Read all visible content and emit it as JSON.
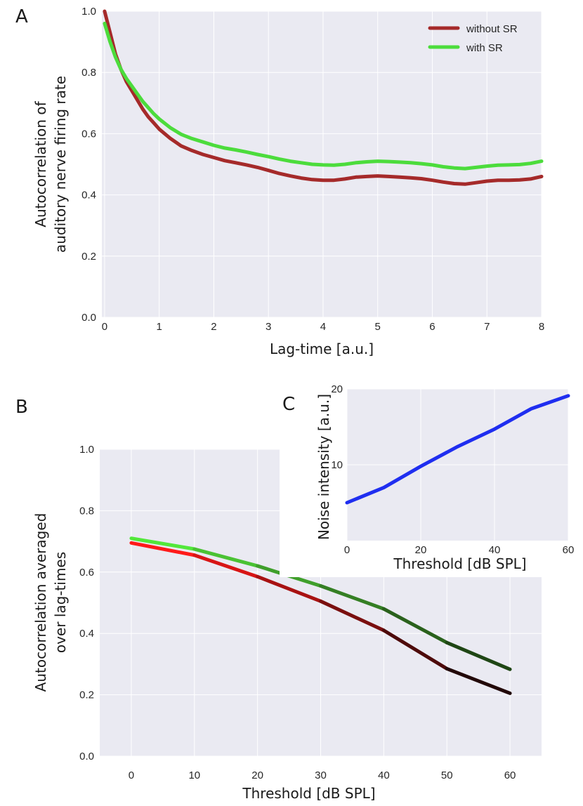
{
  "chart_data": [
    {
      "panel": "A",
      "type": "line",
      "xlabel": "Lag-time [a.u.]",
      "ylabel_lines": [
        "Autocorrelation of",
        "auditory nerve firing rate"
      ],
      "xlim": [
        -0.05,
        8
      ],
      "ylim": [
        0,
        1.0
      ],
      "xticks": [
        "0",
        "1",
        "2",
        "3",
        "4",
        "5",
        "6",
        "7",
        "8"
      ],
      "yticks": [
        "0.0",
        "0.2",
        "0.4",
        "0.6",
        "0.8",
        "1.0"
      ],
      "grid": true,
      "legend_position": "top-right",
      "series": [
        {
          "name": "without SR",
          "color": "#a52a2a",
          "x": [
            0,
            0.1,
            0.2,
            0.3,
            0.4,
            0.5,
            0.6,
            0.7,
            0.8,
            0.9,
            1.0,
            1.2,
            1.4,
            1.6,
            1.8,
            2.0,
            2.2,
            2.4,
            2.6,
            2.8,
            3.0,
            3.2,
            3.4,
            3.6,
            3.8,
            4.0,
            4.2,
            4.4,
            4.6,
            4.8,
            5.0,
            5.2,
            5.4,
            5.6,
            5.8,
            6.0,
            6.2,
            6.4,
            6.6,
            6.8,
            7.0,
            7.2,
            7.4,
            7.6,
            7.8,
            8.0
          ],
          "y": [
            1.0,
            0.93,
            0.86,
            0.81,
            0.77,
            0.74,
            0.71,
            0.68,
            0.655,
            0.635,
            0.615,
            0.585,
            0.56,
            0.545,
            0.532,
            0.522,
            0.512,
            0.505,
            0.498,
            0.49,
            0.48,
            0.47,
            0.462,
            0.455,
            0.45,
            0.448,
            0.448,
            0.452,
            0.458,
            0.46,
            0.462,
            0.46,
            0.458,
            0.456,
            0.453,
            0.448,
            0.442,
            0.437,
            0.435,
            0.44,
            0.445,
            0.448,
            0.448,
            0.449,
            0.452,
            0.46
          ]
        },
        {
          "name": "with SR",
          "color": "#4cdc3c",
          "x": [
            0,
            0.1,
            0.2,
            0.3,
            0.4,
            0.5,
            0.6,
            0.7,
            0.8,
            0.9,
            1.0,
            1.2,
            1.4,
            1.6,
            1.8,
            2.0,
            2.2,
            2.4,
            2.6,
            2.8,
            3.0,
            3.2,
            3.4,
            3.6,
            3.8,
            4.0,
            4.2,
            4.4,
            4.6,
            4.8,
            5.0,
            5.2,
            5.4,
            5.6,
            5.8,
            6.0,
            6.2,
            6.4,
            6.6,
            6.8,
            7.0,
            7.2,
            7.4,
            7.6,
            7.8,
            8.0
          ],
          "y": [
            0.96,
            0.9,
            0.85,
            0.81,
            0.78,
            0.755,
            0.73,
            0.705,
            0.685,
            0.665,
            0.648,
            0.62,
            0.598,
            0.584,
            0.573,
            0.562,
            0.553,
            0.547,
            0.54,
            0.532,
            0.525,
            0.517,
            0.51,
            0.505,
            0.5,
            0.498,
            0.497,
            0.5,
            0.505,
            0.508,
            0.51,
            0.509,
            0.507,
            0.505,
            0.502,
            0.498,
            0.492,
            0.488,
            0.486,
            0.49,
            0.494,
            0.497,
            0.498,
            0.499,
            0.503,
            0.51
          ]
        }
      ]
    },
    {
      "panel": "B",
      "type": "line",
      "xlabel": "Threshold [dB SPL]",
      "ylabel_lines": [
        "Autocorrelation averaged",
        "over lag-times"
      ],
      "xlim": [
        -5,
        65
      ],
      "ylim": [
        0,
        1.0
      ],
      "xticks": [
        "0",
        "10",
        "20",
        "30",
        "40",
        "50",
        "60"
      ],
      "yticks": [
        "0.0",
        "0.2",
        "0.4",
        "0.6",
        "0.8",
        "1.0"
      ],
      "grid": true,
      "series": [
        {
          "name": "without SR",
          "x": [
            0,
            10,
            20,
            30,
            40,
            50,
            60
          ],
          "y": [
            0.695,
            0.655,
            0.585,
            0.505,
            0.41,
            0.285,
            0.205
          ],
          "colors": [
            "#ff1a1a",
            "#d81515",
            "#a81212",
            "#7a0f0f",
            "#4d0a0a",
            "#220808",
            "#0d0d0d"
          ]
        },
        {
          "name": "with SR",
          "x": [
            0,
            10,
            20,
            30,
            40,
            50,
            60
          ],
          "y": [
            0.71,
            0.675,
            0.62,
            0.555,
            0.48,
            0.37,
            0.283
          ],
          "colors": [
            "#52e83a",
            "#4ac233",
            "#3f9f2b",
            "#357f24",
            "#2a611c",
            "#1f4615",
            "#163010"
          ]
        }
      ]
    },
    {
      "panel": "C",
      "type": "line",
      "xlabel": "Threshold [dB SPL]",
      "ylabel": "Noise intensity [a.u.]",
      "xlim": [
        0,
        60
      ],
      "ylim": [
        0,
        20
      ],
      "xticks": [
        "0",
        "20",
        "40",
        "60"
      ],
      "yticks": [
        "10",
        "20"
      ],
      "grid": true,
      "series": [
        {
          "name": "noise intensity",
          "color": "#1f2ef0",
          "x": [
            0,
            10,
            20,
            30,
            40,
            50,
            60
          ],
          "y": [
            5.0,
            7.0,
            9.8,
            12.4,
            14.7,
            17.4,
            19.1
          ]
        }
      ]
    }
  ]
}
